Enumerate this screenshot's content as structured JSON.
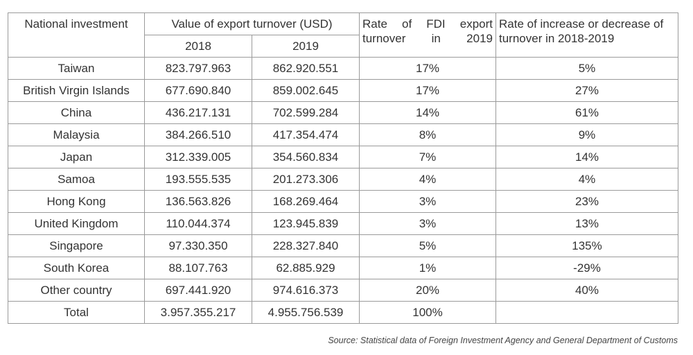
{
  "table": {
    "headers": {
      "country": "National investment",
      "value": "Value of export turnover (USD)",
      "year_2018": "2018",
      "year_2019": "2019",
      "rate_fdi": "Rate of FDI export turnover in 2019",
      "rate_change": "Rate of increase or decrease of turnover in 2018-2019"
    },
    "rows": [
      [
        "Taiwan",
        "823.797.963",
        "862.920.551",
        "17%",
        "5%"
      ],
      [
        "British Virgin Islands",
        "677.690.840",
        "859.002.645",
        "17%",
        "27%"
      ],
      [
        "China",
        "436.217.131",
        "702.599.284",
        "14%",
        "61%"
      ],
      [
        "Malaysia",
        "384.266.510",
        "417.354.474",
        "8%",
        "9%"
      ],
      [
        "Japan",
        "312.339.005",
        "354.560.834",
        "7%",
        "14%"
      ],
      [
        "Samoa",
        "193.555.535",
        "201.273.306",
        "4%",
        "4%"
      ],
      [
        "Hong Kong",
        "136.563.826",
        "168.269.464",
        "3%",
        "23%"
      ],
      [
        "United Kingdom",
        "110.044.374",
        "123.945.839",
        "3%",
        "13%"
      ],
      [
        "Singapore",
        "97.330.350",
        "228.327.840",
        "5%",
        "135%"
      ],
      [
        "South Korea",
        "88.107.763",
        "62.885.929",
        "1%",
        "-29%"
      ],
      [
        "Other country",
        "697.441.920",
        "974.616.373",
        "20%",
        "40%"
      ],
      [
        "Total",
        "3.957.355.217",
        "4.955.756.539",
        "100%",
        ""
      ]
    ]
  },
  "source": "Source: Statistical data of Foreign Investment Agency and General Department of Customs"
}
